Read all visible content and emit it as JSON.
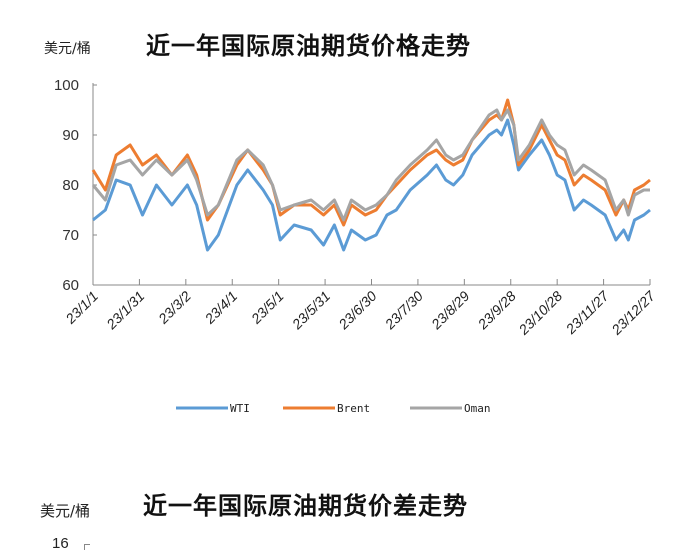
{
  "chart_data": {
    "type": "line",
    "title": "近一年国际原油期货价格走势",
    "ylabel": "美元/桶",
    "xlabel": "",
    "ylim": [
      60,
      100
    ],
    "yticks": [
      60,
      70,
      80,
      90,
      100
    ],
    "x_tick_labels": [
      "23/1/1",
      "23/1/31",
      "23/3/2",
      "23/4/1",
      "23/5/1",
      "23/5/31",
      "23/6/30",
      "23/7/30",
      "23/8/29",
      "23/9/28",
      "23/10/28",
      "23/11/27",
      "23/12/27"
    ],
    "x_unit": "days since 23/1/1",
    "xlim": [
      0,
      360
    ],
    "legend_position": "bottom",
    "grid": false,
    "x": [
      0,
      8,
      15,
      24,
      32,
      41,
      51,
      61,
      67,
      74,
      81,
      93,
      100,
      110,
      116,
      121,
      130,
      141,
      149,
      156,
      162,
      167,
      176,
      183,
      190,
      196,
      205,
      216,
      222,
      228,
      233,
      239,
      245,
      256,
      261,
      264,
      268,
      272,
      275,
      282,
      290,
      295,
      300,
      305,
      311,
      317,
      322,
      331,
      338,
      343,
      346,
      350,
      356,
      360
    ],
    "series": [
      {
        "name": "WTI",
        "color": "#5b9bd5",
        "values": [
          73,
          75,
          81,
          80,
          74,
          80,
          76,
          80,
          76,
          67,
          70,
          80,
          83,
          79,
          76,
          69,
          72,
          71,
          68,
          72,
          67,
          71,
          69,
          70,
          74,
          75,
          79,
          82,
          84,
          81,
          80,
          82,
          86,
          90,
          91,
          90,
          93,
          88,
          83,
          86,
          89,
          86,
          82,
          81,
          75,
          77,
          76,
          74,
          69,
          71,
          69,
          73,
          74,
          75
        ]
      },
      {
        "name": "Brent",
        "color": "#ed7d31",
        "values": [
          83,
          79,
          86,
          88,
          84,
          86,
          82,
          86,
          82,
          73,
          76,
          84,
          87,
          83,
          80,
          74,
          76,
          76,
          74,
          76,
          72,
          76,
          74,
          75,
          78,
          80,
          83,
          86,
          87,
          85,
          84,
          85,
          89,
          93,
          94,
          93,
          97,
          92,
          84,
          87,
          92,
          89,
          86,
          85,
          80,
          82,
          81,
          79,
          74,
          77,
          75,
          79,
          80,
          81
        ]
      },
      {
        "name": "Oman",
        "color": "#a5a5a5",
        "values": [
          80,
          77,
          84,
          85,
          82,
          85,
          82,
          85,
          81,
          74,
          76,
          85,
          87,
          84,
          80,
          75,
          76,
          77,
          75,
          77,
          73,
          77,
          75,
          76,
          78,
          81,
          84,
          87,
          89,
          86,
          85,
          86,
          89,
          94,
          95,
          93,
          95,
          92,
          85,
          88,
          93,
          90,
          88,
          87,
          82,
          84,
          83,
          81,
          75,
          77,
          74,
          78,
          79,
          79
        ]
      }
    ]
  },
  "second_chart": {
    "title": "近一年国际原油期货价差走势",
    "ylabel": "美元/桶",
    "top_tick": "16"
  }
}
